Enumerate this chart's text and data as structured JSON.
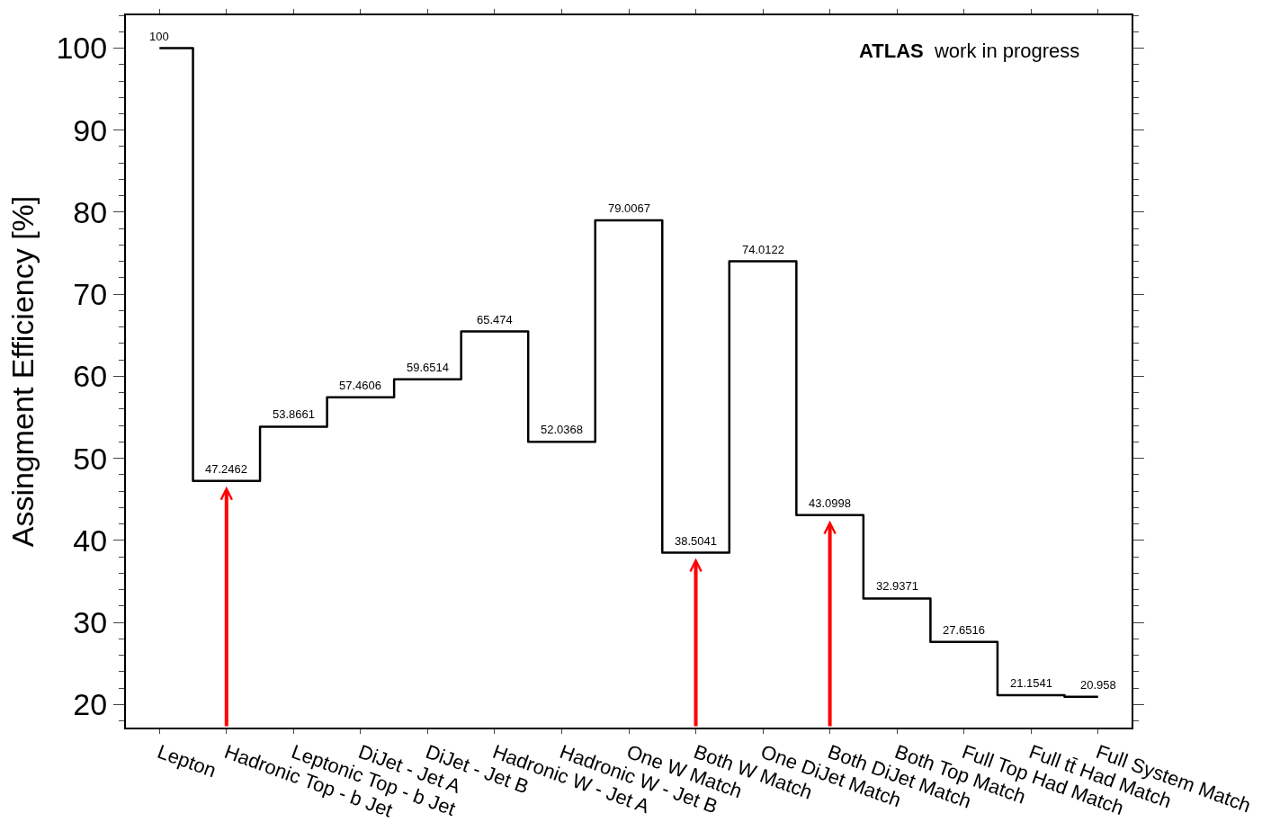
{
  "chart_data": {
    "type": "step",
    "ylabel": "Assingment Efficiency [%]",
    "categories": [
      "Lepton",
      "Hadronic Top - b Jet",
      "Leptonic Top - b Jet",
      "DiJet - Jet A",
      "DiJet - Jet B",
      "Hadronic W - Jet A",
      "Hadronic W - Jet B",
      "One W Match",
      "Both W Match",
      "One DiJet Match",
      "Both DiJet Match",
      "Both Top Match",
      "Full Top Had Match",
      "Full tt̄ Had Match",
      "Full System Match"
    ],
    "values": [
      100,
      47.2462,
      53.8661,
      57.4606,
      59.6514,
      65.474,
      52.0368,
      79.0067,
      38.5041,
      74.0122,
      43.0998,
      32.9371,
      27.6516,
      21.1541,
      20.958
    ],
    "color": "#000000",
    "data_labels": true,
    "ylim": [
      17.2,
      104
    ],
    "yticks": [
      20,
      30,
      40,
      50,
      60,
      70,
      80,
      90,
      100
    ],
    "annotations": [
      "ATLAS work in progress",
      {
        "x": "Hadronic Top - b Jet"
      },
      {
        "x": "Both W Match"
      },
      {
        "x": "Both DiJet Match"
      }
    ],
    "line_style": "solid"
  }
}
